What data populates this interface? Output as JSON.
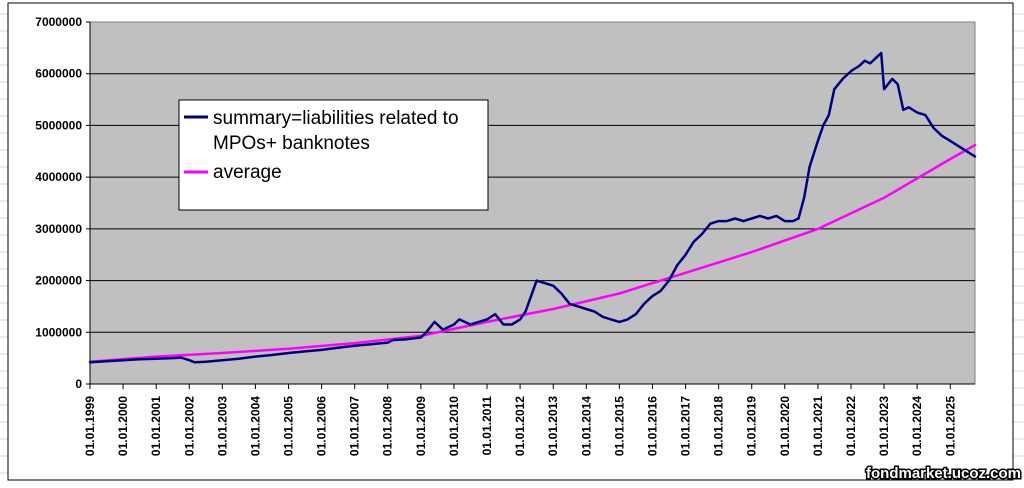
{
  "chart_data": {
    "type": "line",
    "ylim": [
      0,
      7000000
    ],
    "y_ticks": [
      "0",
      "1000000",
      "2000000",
      "3000000",
      "4000000",
      "5000000",
      "6000000",
      "7000000"
    ],
    "x_range": [
      "01.01.1999",
      "01.10.2025"
    ],
    "x_ticks": [
      "01.01.1999",
      "01.01.2000",
      "01.01.2001",
      "01.01.2002",
      "01.01.2003",
      "01.01.2004",
      "01.01.2005",
      "01.01.2006",
      "01.01.2007",
      "01.01.2008",
      "01.01.2009",
      "01.01.2010",
      "01.01.2011",
      "01.01.2012",
      "01.01.2013",
      "01.01.2014",
      "01.01.2015",
      "01.01.2016",
      "01.01.2017",
      "01.01.2018",
      "01.01.2019",
      "01.01.2020",
      "01.01.2021",
      "01.01.2022",
      "01.01.2023",
      "01.01.2024",
      "01.01.2025"
    ],
    "grid": "horizontal",
    "legend_position": "upper-left inside plot",
    "plot_background": "#c0c0c0",
    "series": [
      {
        "name_lines": [
          "summary=liabilities related to",
          "MPOs+ banknotes"
        ],
        "color": "#000080",
        "x": [
          "1999-01-01",
          "1999-07-01",
          "2000-01-01",
          "2000-07-01",
          "2001-01-01",
          "2001-07-01",
          "2001-10-01",
          "2002-01-01",
          "2002-03-01",
          "2002-07-01",
          "2003-01-01",
          "2003-07-01",
          "2004-01-01",
          "2004-07-01",
          "2005-01-01",
          "2005-07-01",
          "2006-01-01",
          "2006-07-01",
          "2007-01-01",
          "2007-07-01",
          "2008-01-01",
          "2008-03-01",
          "2008-07-01",
          "2008-10-01",
          "2009-01-01",
          "2009-03-01",
          "2009-06-01",
          "2009-09-01",
          "2009-11-01",
          "2010-01-01",
          "2010-03-01",
          "2010-07-01",
          "2010-10-01",
          "2011-01-01",
          "2011-04-01",
          "2011-07-01",
          "2011-10-01",
          "2012-01-01",
          "2012-03-01",
          "2012-05-01",
          "2012-07-01",
          "2012-10-01",
          "2013-01-01",
          "2013-04-01",
          "2013-07-01",
          "2013-10-01",
          "2014-01-01",
          "2014-04-01",
          "2014-07-01",
          "2014-10-01",
          "2015-01-01",
          "2015-04-01",
          "2015-07-01",
          "2015-10-01",
          "2016-01-01",
          "2016-04-01",
          "2016-07-01",
          "2016-10-01",
          "2017-01-01",
          "2017-04-01",
          "2017-07-01",
          "2017-10-01",
          "2018-01-01",
          "2018-04-01",
          "2018-07-01",
          "2018-10-01",
          "2019-01-01",
          "2019-04-01",
          "2019-07-01",
          "2019-10-01",
          "2020-01-01",
          "2020-04-01",
          "2020-06-01",
          "2020-08-01",
          "2020-10-01",
          "2021-01-01",
          "2021-03-01",
          "2021-05-01",
          "2021-07-01",
          "2021-10-01",
          "2022-01-01",
          "2022-04-01",
          "2022-06-01",
          "2022-08-01",
          "2022-10-01",
          "2022-12-01",
          "2023-01-01",
          "2023-04-01",
          "2023-06-01",
          "2023-08-01",
          "2023-10-01",
          "2024-01-01",
          "2024-04-01",
          "2024-07-01",
          "2024-10-01",
          "2025-01-01",
          "2025-04-01",
          "2025-07-01",
          "2025-10-01"
        ],
        "y": [
          420000,
          440000,
          460000,
          480000,
          490000,
          500000,
          510000,
          460000,
          420000,
          430000,
          460000,
          490000,
          530000,
          560000,
          600000,
          630000,
          660000,
          700000,
          740000,
          770000,
          800000,
          850000,
          860000,
          880000,
          900000,
          1000000,
          1200000,
          1050000,
          1100000,
          1150000,
          1250000,
          1150000,
          1200000,
          1250000,
          1350000,
          1150000,
          1150000,
          1250000,
          1400000,
          1700000,
          2000000,
          1950000,
          1900000,
          1750000,
          1550000,
          1500000,
          1450000,
          1400000,
          1300000,
          1250000,
          1200000,
          1250000,
          1350000,
          1550000,
          1700000,
          1800000,
          2000000,
          2300000,
          2500000,
          2750000,
          2900000,
          3100000,
          3150000,
          3150000,
          3200000,
          3150000,
          3200000,
          3250000,
          3200000,
          3250000,
          3150000,
          3150000,
          3200000,
          3600000,
          4200000,
          4700000,
          5000000,
          5200000,
          5700000,
          5900000,
          6050000,
          6150000,
          6250000,
          6200000,
          6300000,
          6400000,
          5700000,
          5900000,
          5800000,
          5300000,
          5350000,
          5250000,
          5200000,
          4950000,
          4800000,
          4700000,
          4600000,
          4500000,
          4400000
        ]
      },
      {
        "name": "average",
        "color": "#ff00ff",
        "x": [
          "1999-01-01",
          "2001-01-01",
          "2003-01-01",
          "2005-01-01",
          "2007-01-01",
          "2009-01-01",
          "2011-01-01",
          "2013-01-01",
          "2015-01-01",
          "2017-01-01",
          "2019-01-01",
          "2021-01-01",
          "2023-01-01",
          "2025-01-01",
          "2025-10-01"
        ],
        "y": [
          430000,
          530000,
          600000,
          680000,
          790000,
          930000,
          1200000,
          1450000,
          1750000,
          2150000,
          2550000,
          3000000,
          3600000,
          4350000,
          4620000
        ]
      }
    ]
  },
  "watermark": "fondmarket.ucoz.com"
}
